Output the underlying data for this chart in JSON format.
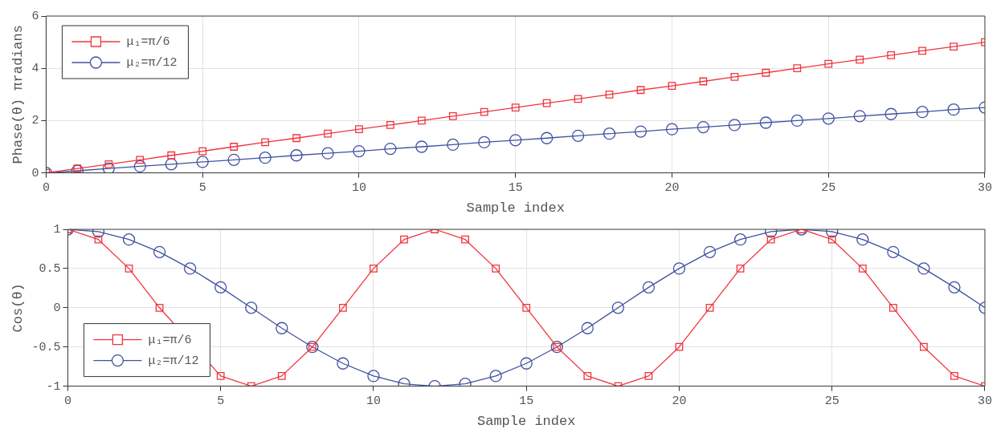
{
  "chart_data": [
    {
      "type": "line",
      "xlabel": "Sample index",
      "ylabel": "Phase(θ) πradians",
      "x": [
        0,
        1,
        2,
        3,
        4,
        5,
        6,
        7,
        8,
        9,
        10,
        11,
        12,
        13,
        14,
        15,
        16,
        17,
        18,
        19,
        20,
        21,
        22,
        23,
        24,
        25,
        26,
        27,
        28,
        29,
        30
      ],
      "series": [
        {
          "name": "μ₁=π/6",
          "color": "#f0343c",
          "marker": "square",
          "values": [
            0,
            0.17,
            0.33,
            0.5,
            0.67,
            0.83,
            1,
            1.17,
            1.33,
            1.5,
            1.67,
            1.83,
            2,
            2.17,
            2.33,
            2.5,
            2.67,
            2.83,
            3,
            3.17,
            3.33,
            3.5,
            3.67,
            3.83,
            4,
            4.17,
            4.33,
            4.5,
            4.67,
            4.83,
            5
          ]
        },
        {
          "name": "μ₂=π/12",
          "color": "#3f51a0",
          "marker": "circle",
          "values": [
            0,
            0.08,
            0.17,
            0.25,
            0.33,
            0.42,
            0.5,
            0.58,
            0.67,
            0.75,
            0.83,
            0.92,
            1,
            1.08,
            1.17,
            1.25,
            1.33,
            1.42,
            1.5,
            1.58,
            1.67,
            1.75,
            1.83,
            1.92,
            2,
            2.08,
            2.17,
            2.25,
            2.33,
            2.42,
            2.5
          ]
        }
      ],
      "xlim": [
        0,
        30
      ],
      "xticks": [
        0,
        5,
        10,
        15,
        20,
        25,
        30
      ],
      "ylim": [
        0,
        6
      ],
      "yticks": [
        0,
        2,
        4,
        6
      ],
      "grid": true,
      "legend": "top left"
    },
    {
      "type": "line",
      "xlabel": "Sample index",
      "ylabel": "Cos(θ)",
      "x": [
        0,
        1,
        2,
        3,
        4,
        5,
        6,
        7,
        8,
        9,
        10,
        11,
        12,
        13,
        14,
        15,
        16,
        17,
        18,
        19,
        20,
        21,
        22,
        23,
        24,
        25,
        26,
        27,
        28,
        29,
        30
      ],
      "series": [
        {
          "name": "μ₁=π/6",
          "color": "#f0343c",
          "marker": "square",
          "values": [
            1,
            0.87,
            0.5,
            0,
            null,
            -0.87,
            -1,
            -0.87,
            -0.5,
            0,
            0.5,
            0.87,
            1,
            0.87,
            0.5,
            0,
            -0.5,
            -0.87,
            -1,
            -0.87,
            -0.5,
            0,
            0.5,
            0.87,
            1,
            0.87,
            0.5,
            0,
            -0.5,
            -0.87,
            -1
          ]
        },
        {
          "name": "μ₂=π/12",
          "color": "#3f51a0",
          "marker": "circle",
          "values": [
            1,
            0.97,
            0.87,
            0.71,
            0.5,
            0.26,
            0,
            -0.26,
            -0.5,
            -0.71,
            -0.87,
            -0.97,
            -1,
            -0.97,
            -0.87,
            -0.71,
            -0.5,
            -0.26,
            0,
            0.26,
            0.5,
            0.71,
            0.87,
            0.97,
            1,
            0.97,
            0.87,
            0.71,
            0.5,
            0.26,
            0
          ]
        }
      ],
      "xlim": [
        0,
        30
      ],
      "xticks": [
        0,
        5,
        10,
        15,
        20,
        25,
        30
      ],
      "ylim": [
        -1,
        1
      ],
      "yticks": [
        -1,
        -0.5,
        0,
        0.5,
        1
      ],
      "grid": true,
      "legend": "bottom left"
    }
  ]
}
